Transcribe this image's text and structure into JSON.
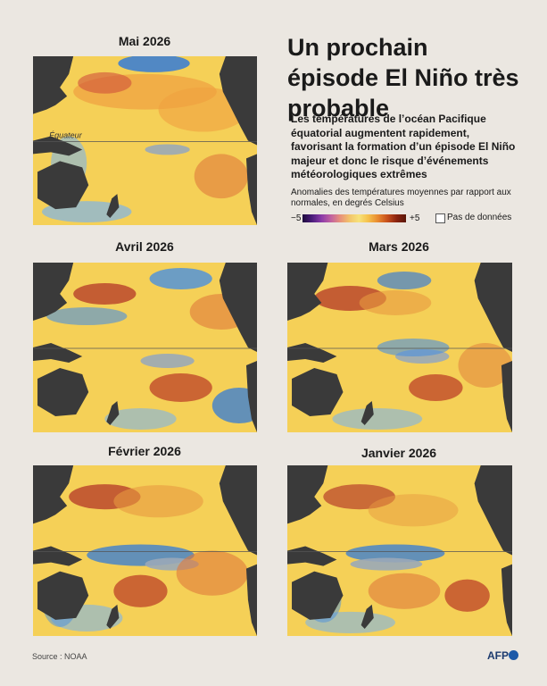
{
  "headline": "Un prochain épisode El Niño très probable",
  "subtitle": "Les températures de l’océan Pacifique équatorial augmentent rapidement, favorisant la formation d’un épisode El Niño majeur et donc le risque d’événements météorologiques extrêmes",
  "legend": {
    "label": "Anomalies des températures moyennes par rapport aux normales, en degrés Celsius",
    "min": "−5",
    "max": "+5",
    "no_data": "Pas de données",
    "colors": [
      "#1d0a3c",
      "#4a1c7a",
      "#8a3aa8",
      "#c060a0",
      "#e8907a",
      "#f2c46a",
      "#f7e27a",
      "#f5c04a",
      "#e88a30",
      "#c8501c",
      "#8a2410",
      "#5a1608"
    ]
  },
  "maps": [
    {
      "title": "Mai 2026",
      "equator_label": "Équateur"
    },
    {
      "title": "Avril 2026"
    },
    {
      "title": "Mars 2026"
    },
    {
      "title": "Février 2026"
    },
    {
      "title": "Janvier 2026"
    }
  ],
  "source": "Source : NOAA",
  "credit": "AFP",
  "colors": {
    "land": "#3a3a3a",
    "background": "#ebe7e1",
    "ocean_base": "#f3c84c"
  }
}
